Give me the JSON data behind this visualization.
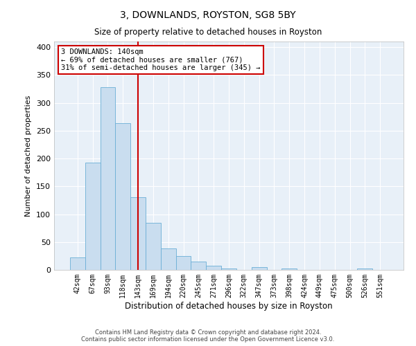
{
  "title": "3, DOWNLANDS, ROYSTON, SG8 5BY",
  "subtitle": "Size of property relative to detached houses in Royston",
  "xlabel": "Distribution of detached houses by size in Royston",
  "ylabel": "Number of detached properties",
  "bar_color": "#c9ddef",
  "bar_edge_color": "#6aaed6",
  "background_color": "#e8f0f8",
  "grid_color": "#ffffff",
  "vline_color": "#cc0000",
  "annotation_text": "3 DOWNLANDS: 140sqm\n← 69% of detached houses are smaller (767)\n31% of semi-detached houses are larger (345) →",
  "annotation_box_color": "#cc0000",
  "categories": [
    "42sqm",
    "67sqm",
    "93sqm",
    "118sqm",
    "143sqm",
    "169sqm",
    "194sqm",
    "220sqm",
    "245sqm",
    "271sqm",
    "296sqm",
    "322sqm",
    "347sqm",
    "373sqm",
    "398sqm",
    "424sqm",
    "449sqm",
    "475sqm",
    "500sqm",
    "526sqm",
    "551sqm"
  ],
  "values": [
    22,
    193,
    328,
    264,
    130,
    85,
    38,
    25,
    15,
    8,
    3,
    0,
    5,
    0,
    3,
    0,
    0,
    0,
    0,
    2,
    0
  ],
  "vline_index": 4,
  "ylim": [
    0,
    410
  ],
  "yticks": [
    0,
    50,
    100,
    150,
    200,
    250,
    300,
    350,
    400
  ],
  "footnote": "Contains HM Land Registry data © Crown copyright and database right 2024.\nContains public sector information licensed under the Open Government Licence v3.0.",
  "figsize": [
    6.0,
    5.0
  ],
  "dpi": 100
}
